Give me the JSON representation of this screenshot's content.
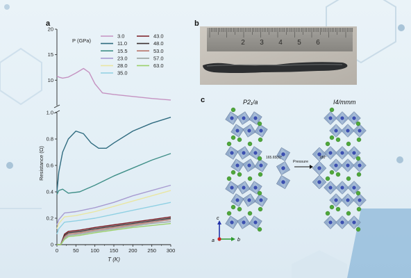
{
  "panels": {
    "a": "a",
    "b": "b",
    "c": "c"
  },
  "chart_data": {
    "type": "line",
    "xlabel": "T (K)",
    "ylabel": "Resistance (Ω)",
    "xlim": [
      0,
      300
    ],
    "x_ticks": [
      "0",
      "50",
      "100",
      "150",
      "200",
      "250",
      "300"
    ],
    "y_ticks_lower": [
      "0",
      "0.2",
      "0.4",
      "0.6",
      "0.8",
      "1.0"
    ],
    "y_ticks_upper": [
      "10",
      "15",
      "20"
    ],
    "axis_break": "between 1.0 and 10",
    "legend_title": "P (GPa)",
    "legend_placement": "top-right",
    "series": [
      {
        "name": "3.0",
        "color": "#c592c1",
        "x": [
          0,
          5,
          15,
          30,
          50,
          70,
          85,
          100,
          120,
          150,
          200,
          250,
          300
        ],
        "y": [
          10.8,
          10.6,
          10.4,
          10.6,
          11.4,
          12.3,
          11.5,
          9.3,
          7.5,
          7.2,
          6.8,
          6.4,
          6.1
        ]
      },
      {
        "name": "11.0",
        "color": "#2f6b7f",
        "x": [
          0,
          5,
          15,
          30,
          50,
          70,
          90,
          110,
          130,
          150,
          200,
          250,
          300
        ],
        "y": [
          0.4,
          0.55,
          0.7,
          0.8,
          0.86,
          0.84,
          0.77,
          0.73,
          0.73,
          0.77,
          0.86,
          0.92,
          0.965
        ]
      },
      {
        "name": "15.5",
        "color": "#3f8f88",
        "x": [
          0,
          5,
          15,
          30,
          60,
          100,
          150,
          200,
          250,
          300
        ],
        "y": [
          0.38,
          0.41,
          0.42,
          0.39,
          0.4,
          0.45,
          0.52,
          0.58,
          0.64,
          0.69
        ]
      },
      {
        "name": "23.0",
        "color": "#a79bd1",
        "x": [
          0,
          5,
          20,
          50,
          100,
          150,
          200,
          250,
          300
        ],
        "y": [
          0.15,
          0.19,
          0.24,
          0.25,
          0.28,
          0.32,
          0.37,
          0.41,
          0.45
        ]
      },
      {
        "name": "28.0",
        "color": "#e9e6a3",
        "x": [
          0,
          5,
          20,
          50,
          100,
          150,
          200,
          250,
          300
        ],
        "y": [
          0.12,
          0.16,
          0.21,
          0.22,
          0.25,
          0.29,
          0.33,
          0.37,
          0.41
        ]
      },
      {
        "name": "35.0",
        "color": "#8fd0e3",
        "x": [
          0,
          5,
          20,
          50,
          100,
          150,
          200,
          250,
          300
        ],
        "y": [
          0.08,
          0.12,
          0.17,
          0.18,
          0.2,
          0.23,
          0.26,
          0.29,
          0.32
        ]
      },
      {
        "name": "43.0",
        "color": "#7a1b22",
        "x": [
          0,
          10,
          20,
          30,
          60,
          100,
          150,
          200,
          250,
          300
        ],
        "y": [
          0,
          0,
          0.08,
          0.1,
          0.11,
          0.13,
          0.15,
          0.17,
          0.19,
          0.21
        ]
      },
      {
        "name": "48.0",
        "color": "#3b3030",
        "x": [
          0,
          10,
          20,
          30,
          60,
          100,
          150,
          200,
          250,
          300
        ],
        "y": [
          0,
          0,
          0.07,
          0.09,
          0.1,
          0.12,
          0.14,
          0.16,
          0.18,
          0.2
        ]
      },
      {
        "name": "53.0",
        "color": "#b8746a",
        "x": [
          0,
          10,
          20,
          30,
          60,
          100,
          150,
          200,
          250,
          300
        ],
        "y": [
          0,
          0,
          0.06,
          0.08,
          0.09,
          0.11,
          0.13,
          0.15,
          0.17,
          0.19
        ]
      },
      {
        "name": "57.0",
        "color": "#9aa3a0",
        "x": [
          0,
          10,
          20,
          30,
          60,
          100,
          150,
          200,
          250,
          300
        ],
        "y": [
          0,
          0,
          0.05,
          0.07,
          0.08,
          0.1,
          0.12,
          0.14,
          0.16,
          0.175
        ]
      },
      {
        "name": "63.0",
        "color": "#9bcf6a",
        "x": [
          0,
          10,
          20,
          30,
          60,
          100,
          150,
          200,
          250,
          300
        ],
        "y": [
          0,
          0,
          0.04,
          0.06,
          0.07,
          0.09,
          0.11,
          0.13,
          0.145,
          0.16
        ]
      }
    ]
  },
  "photo": {
    "ruler_numbers": [
      "2",
      "3",
      "4",
      "5",
      "6"
    ],
    "ruler_color": "#8f8d88",
    "sample_color": "#2c2e30"
  },
  "structure": {
    "left_label": "P2₁/a",
    "right_label": "I4/mmm",
    "angle_left": "165.65(6)°",
    "angle_right": "180°",
    "arrow_label": "Pressure",
    "axes": {
      "c": "c",
      "a": "a",
      "b": "b"
    },
    "colors": {
      "octahedron": "#8da7c9",
      "center": "#3b4fb0",
      "cation": "#4fa83a"
    }
  }
}
